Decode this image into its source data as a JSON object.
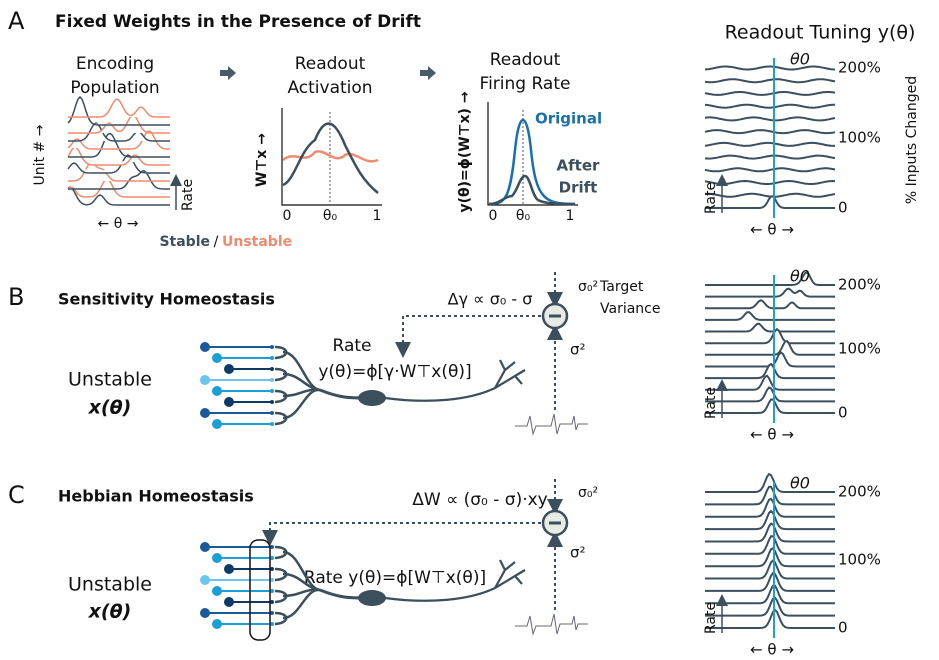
{
  "panels": [
    {
      "letter": "A",
      "title": "Fixed Weights in the Presence of Drift"
    },
    {
      "letter": "B",
      "title": "Sensitivity Homeostasis"
    },
    {
      "letter": "C",
      "title": "Hebbian Homeostasis"
    }
  ],
  "panel_a": {
    "encoding": {
      "title_lines": [
        "Encoding",
        "Population"
      ],
      "y_label": "Unit # →",
      "x_label": "← θ →",
      "rate_label": "Rate"
    },
    "legend": {
      "stable": "Stable",
      "separator": "/",
      "unstable": "Unstable"
    },
    "activation": {
      "title_lines": [
        "Readout",
        "Activation"
      ],
      "y_label": "W⊤x →",
      "x_ticks": [
        "0",
        "θ₀",
        "1"
      ]
    },
    "firing": {
      "title_lines": [
        "Readout",
        "Firing Rate"
      ],
      "y_label": "y(θ)=ϕ(W⊤x) →",
      "x_ticks": [
        "0",
        "θ₀",
        "1"
      ],
      "original": "Original",
      "after_lines": [
        "After",
        "Drift"
      ]
    }
  },
  "tuning_title": "Readout Tuning y(θ)",
  "tuning_axis": "% Inputs Changed",
  "tunings": [
    {
      "theta0": "θ0",
      "ticks": [
        "200%",
        "100%",
        "0"
      ],
      "rate": "Rate",
      "x_label": "← θ →"
    },
    {
      "theta0": "θ0",
      "ticks": [
        "200%",
        "100%",
        "0"
      ],
      "rate": "Rate",
      "x_label": "← θ →"
    },
    {
      "theta0": "θ0",
      "ticks": [
        "200%",
        "100%",
        "0"
      ],
      "rate": "Rate",
      "x_label": "← θ →"
    }
  ],
  "panel_b": {
    "rule": "Δγ ∝ σ₀ - σ",
    "target_sigma": "σ₀²",
    "target_lines": [
      "Target",
      "Variance"
    ],
    "sigma2": "σ²",
    "rate_label": "Rate",
    "rate_formula": "y(θ)=ϕ[γ·W⊤x(θ)]",
    "input_lines": [
      "Unstable",
      "x(θ)"
    ]
  },
  "panel_c": {
    "rule": "ΔW ∝ (σ₀ - σ)·xy",
    "target_sigma": "σ₀²",
    "sigma2": "σ²",
    "rate_formula": "Rate y(θ)=ϕ[W⊤x(θ)]",
    "input_lines": [
      "Unstable",
      "x(θ)"
    ]
  }
}
